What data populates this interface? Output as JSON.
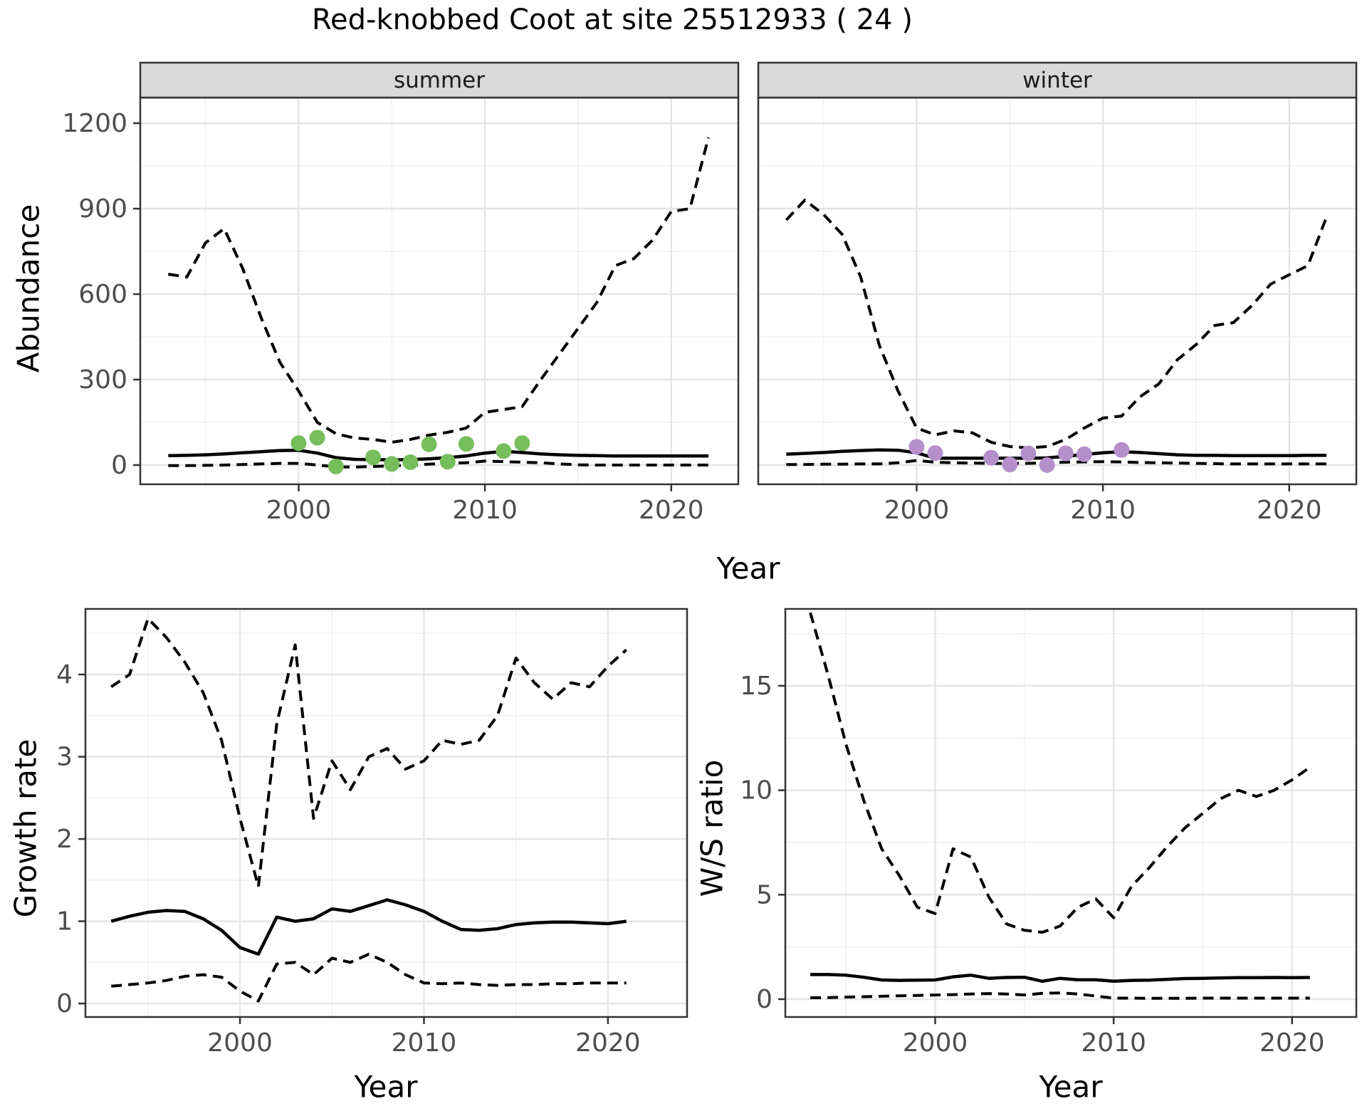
{
  "title": "Red-knobbed Coot at site 25512933 ( 24 )",
  "colors": {
    "background": "#ffffff",
    "line": "#000000",
    "grid_major": "#e5e5e5",
    "grid_minor": "#f1f1f1",
    "panel_border": "#333333",
    "strip_fill": "#d9d9d9",
    "axis_text": "#4d4d4d",
    "summer_points": "#76bd5b",
    "winter_points": "#b48fca"
  },
  "chart_data": [
    {
      "id": "abundance_summer",
      "type": "line",
      "facet_label": "summer",
      "ylabel": "Abundance",
      "xlabel": "Year",
      "x": [
        1993,
        1994,
        1995,
        1996,
        1997,
        1998,
        1999,
        2000,
        2001,
        2002,
        2003,
        2004,
        2005,
        2006,
        2007,
        2008,
        2009,
        2010,
        2011,
        2012,
        2013,
        2014,
        2015,
        2016,
        2017,
        2018,
        2019,
        2020,
        2021,
        2022
      ],
      "series": [
        {
          "name": "upper-95ci",
          "style": "dashed",
          "values": [
            670,
            660,
            780,
            830,
            690,
            515,
            360,
            260,
            150,
            110,
            95,
            90,
            80,
            90,
            105,
            115,
            130,
            185,
            195,
            205,
            300,
            390,
            480,
            570,
            700,
            725,
            790,
            890,
            900,
            1150
          ]
        },
        {
          "name": "median-estimate",
          "style": "solid",
          "values": [
            33,
            34,
            36,
            39,
            43,
            47,
            51,
            52,
            42,
            26,
            20,
            19,
            18,
            19,
            22,
            26,
            32,
            42,
            48,
            44,
            39,
            36,
            34,
            33,
            32,
            32,
            32,
            32,
            32,
            32
          ]
        },
        {
          "name": "lower-95ci",
          "style": "dashed",
          "values": [
            -2,
            -2,
            -1,
            0,
            2,
            4,
            6,
            6,
            0,
            -6,
            -7,
            -5,
            -3,
            0,
            3,
            6,
            8,
            14,
            12,
            10,
            8,
            4,
            1,
            0,
            0,
            0,
            0,
            0,
            0,
            0
          ]
        }
      ],
      "observations": {
        "name": "observed-counts",
        "color_key": "summer_points",
        "points": [
          [
            2000,
            77
          ],
          [
            2001,
            96
          ],
          [
            2002,
            -5
          ],
          [
            2004,
            27
          ],
          [
            2005,
            4
          ],
          [
            2006,
            10
          ],
          [
            2007,
            73
          ],
          [
            2008,
            12
          ],
          [
            2009,
            74
          ],
          [
            2011,
            49
          ],
          [
            2012,
            77
          ]
        ]
      },
      "xlim": [
        1991.5,
        2023.6
      ],
      "ylim": [
        -67.5,
        1290
      ],
      "xticks": [
        2000,
        2010,
        2020
      ],
      "xtick_labels": [
        "2000",
        "2010",
        "2020"
      ],
      "xticks_minor": [
        1995,
        2005,
        2015
      ],
      "yticks": [
        0,
        300,
        600,
        900,
        1200
      ],
      "ytick_labels": [
        "0",
        "300",
        "600",
        "900",
        "1200"
      ],
      "yticks_minor": [
        150,
        450,
        750,
        1050
      ],
      "show_y_tick_labels": true,
      "grid": true,
      "legend": "none"
    },
    {
      "id": "abundance_winter",
      "type": "line",
      "facet_label": "winter",
      "x": [
        1993,
        1994,
        1995,
        1996,
        1997,
        1998,
        1999,
        2000,
        2001,
        2002,
        2003,
        2004,
        2005,
        2006,
        2007,
        2008,
        2009,
        2010,
        2011,
        2012,
        2013,
        2014,
        2015,
        2016,
        2017,
        2018,
        2019,
        2020,
        2021,
        2022
      ],
      "series": [
        {
          "name": "upper-95ci",
          "style": "dashed",
          "values": [
            860,
            930,
            880,
            810,
            660,
            420,
            260,
            130,
            106,
            120,
            113,
            80,
            65,
            60,
            65,
            90,
            130,
            165,
            172,
            240,
            285,
            370,
            423,
            490,
            500,
            560,
            635,
            668,
            700,
            870
          ]
        },
        {
          "name": "median-estimate",
          "style": "solid",
          "values": [
            38,
            41,
            44,
            48,
            51,
            53,
            52,
            43,
            24,
            24,
            24,
            24,
            24,
            24,
            25,
            31,
            37,
            43,
            47,
            44,
            40,
            36,
            34,
            34,
            33,
            33,
            33,
            33,
            34,
            34
          ]
        },
        {
          "name": "lower-95ci",
          "style": "dashed",
          "values": [
            2,
            2,
            3,
            3,
            4,
            4,
            8,
            16,
            10,
            8,
            7,
            6,
            6,
            6,
            8,
            10,
            11,
            12,
            11,
            9,
            8,
            7,
            6,
            5,
            4,
            4,
            4,
            4,
            4,
            4
          ]
        }
      ],
      "observations": {
        "name": "observed-counts",
        "color_key": "winter_points",
        "points": [
          [
            2000,
            64
          ],
          [
            2001,
            42
          ],
          [
            2004,
            26
          ],
          [
            2005,
            2
          ],
          [
            2006,
            41
          ],
          [
            2007,
            0
          ],
          [
            2008,
            41
          ],
          [
            2009,
            38
          ],
          [
            2011,
            53
          ]
        ]
      },
      "xlim": [
        1991.5,
        2023.6
      ],
      "ylim": [
        -67.5,
        1290
      ],
      "xticks": [
        2000,
        2010,
        2020
      ],
      "xtick_labels": [
        "2000",
        "2010",
        "2020"
      ],
      "xticks_minor": [
        1995,
        2005,
        2015
      ],
      "yticks": [
        0,
        300,
        600,
        900,
        1200
      ],
      "ytick_labels": [
        "0",
        "300",
        "600",
        "900",
        "1200"
      ],
      "yticks_minor": [
        150,
        450,
        750,
        1050
      ],
      "show_y_tick_labels": false,
      "grid": true,
      "legend": "none"
    },
    {
      "id": "growth",
      "type": "line",
      "ylabel": "Growth rate",
      "xlabel": "Year",
      "x": [
        1993,
        1994,
        1995,
        1996,
        1997,
        1998,
        1999,
        2000,
        2001,
        2002,
        2003,
        2004,
        2005,
        2006,
        2007,
        2008,
        2009,
        2010,
        2011,
        2012,
        2013,
        2014,
        2015,
        2016,
        2017,
        2018,
        2019,
        2020,
        2021
      ],
      "series": [
        {
          "name": "upper-95ci",
          "style": "dashed",
          "values": [
            3.85,
            4.0,
            4.68,
            4.45,
            4.15,
            3.78,
            3.2,
            2.25,
            1.42,
            3.4,
            4.36,
            2.25,
            2.95,
            2.6,
            3.0,
            3.1,
            2.85,
            2.95,
            3.2,
            3.15,
            3.2,
            3.5,
            4.2,
            3.9,
            3.7,
            3.9,
            3.85,
            4.1,
            4.3
          ]
        },
        {
          "name": "median-estimate",
          "style": "solid",
          "values": [
            1.0,
            1.06,
            1.11,
            1.13,
            1.12,
            1.03,
            0.89,
            0.68,
            0.6,
            1.05,
            1.0,
            1.03,
            1.15,
            1.12,
            1.19,
            1.26,
            1.2,
            1.12,
            1.0,
            0.9,
            0.89,
            0.91,
            0.96,
            0.98,
            0.99,
            0.99,
            0.98,
            0.97,
            1.0
          ]
        },
        {
          "name": "lower-95ci",
          "style": "dashed",
          "values": [
            0.21,
            0.23,
            0.25,
            0.28,
            0.33,
            0.35,
            0.32,
            0.15,
            0.03,
            0.48,
            0.5,
            0.35,
            0.55,
            0.5,
            0.6,
            0.5,
            0.35,
            0.25,
            0.24,
            0.25,
            0.23,
            0.22,
            0.23,
            0.23,
            0.24,
            0.24,
            0.25,
            0.25,
            0.25
          ]
        }
      ],
      "xlim": [
        1991.6,
        2024.3
      ],
      "ylim": [
        -0.164,
        4.797
      ],
      "xticks": [
        2000,
        2010,
        2020
      ],
      "xtick_labels": [
        "2000",
        "2010",
        "2020"
      ],
      "xticks_minor": [
        1995,
        2005,
        2015
      ],
      "yticks": [
        0,
        1,
        2,
        3,
        4
      ],
      "ytick_labels": [
        "0",
        "1",
        "2",
        "3",
        "4"
      ],
      "yticks_minor": [
        0.5,
        1.5,
        2.5,
        3.5,
        4.5
      ],
      "show_y_tick_labels": true,
      "grid": true,
      "legend": "none"
    },
    {
      "id": "ws",
      "type": "line",
      "ylabel": "W/S ratio",
      "xlabel": "Year",
      "x": [
        1993,
        1994,
        1995,
        1996,
        1997,
        1998,
        1999,
        2000,
        2001,
        2002,
        2003,
        2004,
        2005,
        2006,
        2007,
        2008,
        2009,
        2010,
        2011,
        2012,
        2013,
        2014,
        2015,
        2016,
        2017,
        2018,
        2019,
        2020,
        2021
      ],
      "series": [
        {
          "name": "upper-95ci",
          "style": "dashed",
          "values": [
            18.5,
            15.5,
            12.2,
            9.5,
            7.2,
            5.9,
            4.4,
            4.1,
            7.2,
            6.8,
            4.9,
            3.6,
            3.3,
            3.2,
            3.5,
            4.4,
            4.8,
            3.9,
            5.4,
            6.3,
            7.3,
            8.2,
            8.9,
            9.6,
            10.0,
            9.7,
            10.0,
            10.5,
            11.1
          ]
        },
        {
          "name": "median-estimate",
          "style": "solid",
          "values": [
            1.18,
            1.18,
            1.15,
            1.05,
            0.92,
            0.9,
            0.91,
            0.92,
            1.07,
            1.15,
            1.0,
            1.04,
            1.05,
            0.86,
            1.0,
            0.93,
            0.93,
            0.86,
            0.9,
            0.91,
            0.95,
            0.99,
            1.0,
            1.02,
            1.03,
            1.03,
            1.04,
            1.03,
            1.04
          ]
        },
        {
          "name": "lower-95ci",
          "style": "dashed",
          "values": [
            0.07,
            0.08,
            0.1,
            0.12,
            0.14,
            0.16,
            0.18,
            0.2,
            0.22,
            0.25,
            0.27,
            0.25,
            0.2,
            0.28,
            0.3,
            0.25,
            0.15,
            0.05,
            0.05,
            0.04,
            0.04,
            0.04,
            0.05,
            0.05,
            0.05,
            0.05,
            0.05,
            0.05,
            0.05
          ]
        }
      ],
      "xlim": [
        1991.6,
        2023.6
      ],
      "ylim": [
        -0.852,
        18.68
      ],
      "xticks": [
        2000,
        2010,
        2020
      ],
      "xtick_labels": [
        "2000",
        "2010",
        "2020"
      ],
      "xticks_minor": [
        1995,
        2005,
        2015
      ],
      "yticks": [
        0,
        5,
        10,
        15
      ],
      "ytick_labels": [
        "0",
        "5",
        "10",
        "15"
      ],
      "yticks_minor": [
        2.5,
        7.5,
        12.5,
        17.5
      ],
      "show_y_tick_labels": true,
      "grid": true,
      "legend": "none"
    }
  ]
}
